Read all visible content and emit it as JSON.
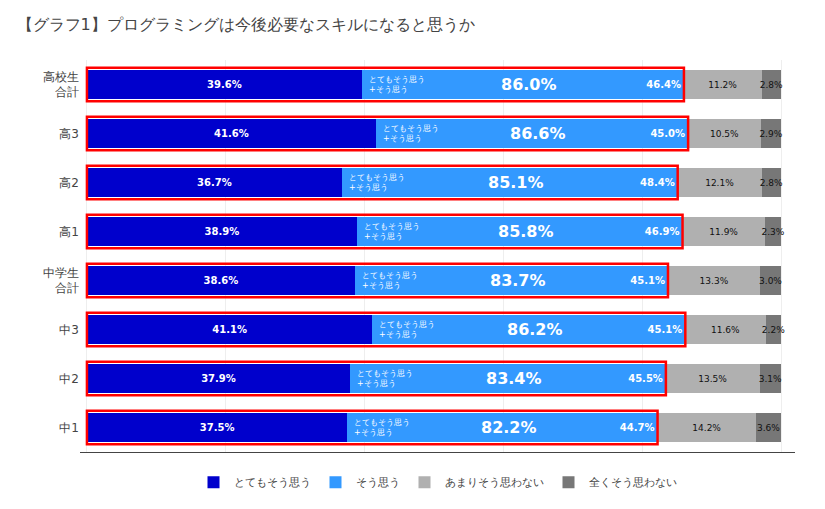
{
  "chart_data": {
    "type": "bar",
    "orientation": "horizontal",
    "stacked": true,
    "title": "【グラフ1】プログラミングは今後必要なスキルになると思うか",
    "categories": [
      "高校生\n合計",
      "高3",
      "高2",
      "高1",
      "中学生\n合計",
      "中3",
      "中2",
      "中1"
    ],
    "series": [
      {
        "name": "とてもそう思う",
        "color": "#0000CC",
        "values": [
          39.6,
          41.6,
          36.7,
          38.9,
          38.6,
          41.1,
          37.9,
          37.5
        ],
        "value_labels": [
          "39.6%",
          "41.6%",
          "36.7%",
          "38.9%",
          "38.6%",
          "41.1%",
          "37.9%",
          "37.5%"
        ]
      },
      {
        "name": "そう思う",
        "color": "#3399FF",
        "values": [
          46.4,
          45.0,
          48.4,
          46.9,
          45.1,
          45.1,
          45.5,
          44.7
        ],
        "value_labels": [
          "46.4%",
          "45.0%",
          "48.4%",
          "46.9%",
          "45.1%",
          "45.1%",
          "45.5%",
          "44.7%"
        ]
      },
      {
        "name": "あまりそう思わない",
        "color": "#B0B0B0",
        "values": [
          11.2,
          10.5,
          12.1,
          11.9,
          13.3,
          11.6,
          13.5,
          14.2
        ],
        "value_labels": [
          "11.2%",
          "10.5%",
          "12.1%",
          "11.9%",
          "13.3%",
          "11.6%",
          "13.5%",
          "14.2%"
        ]
      },
      {
        "name": "全くそう思わない",
        "color": "#777777",
        "values": [
          2.8,
          2.9,
          2.8,
          2.3,
          3.0,
          2.2,
          3.1,
          3.6
        ],
        "value_labels": [
          "2.8%",
          "2.9%",
          "2.8%",
          "2.3%",
          "3.0%",
          "2.2%",
          "3.1%",
          "3.6%"
        ]
      }
    ],
    "annotations": [
      {
        "category": "高校生\n合計",
        "text": "86.0%",
        "value": 86.0
      },
      {
        "category": "高3",
        "text": "86.6%",
        "value": 86.6
      },
      {
        "category": "高2",
        "text": "85.1%",
        "value": 85.1
      },
      {
        "category": "高1",
        "text": "85.8%",
        "value": 85.8
      },
      {
        "category": "中学生\n合計",
        "text": "83.7%",
        "value": 83.7
      },
      {
        "category": "中3",
        "text": "86.2%",
        "value": 86.2
      },
      {
        "category": "中2",
        "text": "83.4%",
        "value": 83.4
      },
      {
        "category": "中1",
        "text": "82.2%",
        "value": 82.2
      },
      {
        "category": "高校生\n合計",
        "text": "とてもそう思う\n+そう思う"
      },
      {
        "category": "高3",
        "text": "とてもそう思う\n+そう思う"
      },
      {
        "category": "高2",
        "text": "とてもそう思う\n+そう思う"
      },
      {
        "category": "高1",
        "text": "とてもそう思う\n+そう思う"
      },
      {
        "category": "中学生\n合計",
        "text": "とてもそう思う\n+そう思う"
      },
      {
        "category": "中3",
        "text": "とてもそう思う\n+そう思う"
      },
      {
        "category": "中2",
        "text": "とてもそう思う\n+そう思う"
      },
      {
        "category": "中1",
        "text": "とてもそう思う\n+そう思う"
      }
    ],
    "highlight": {
      "series": [
        "とてもそう思う",
        "そう思う"
      ],
      "color": "#FF0000"
    },
    "xlim": [
      -1,
      102
    ],
    "xticks": [
      0,
      20,
      40,
      60,
      80,
      100
    ],
    "grid": true,
    "tick_labels": "y",
    "legend": "bottom",
    "data_labels": true
  }
}
